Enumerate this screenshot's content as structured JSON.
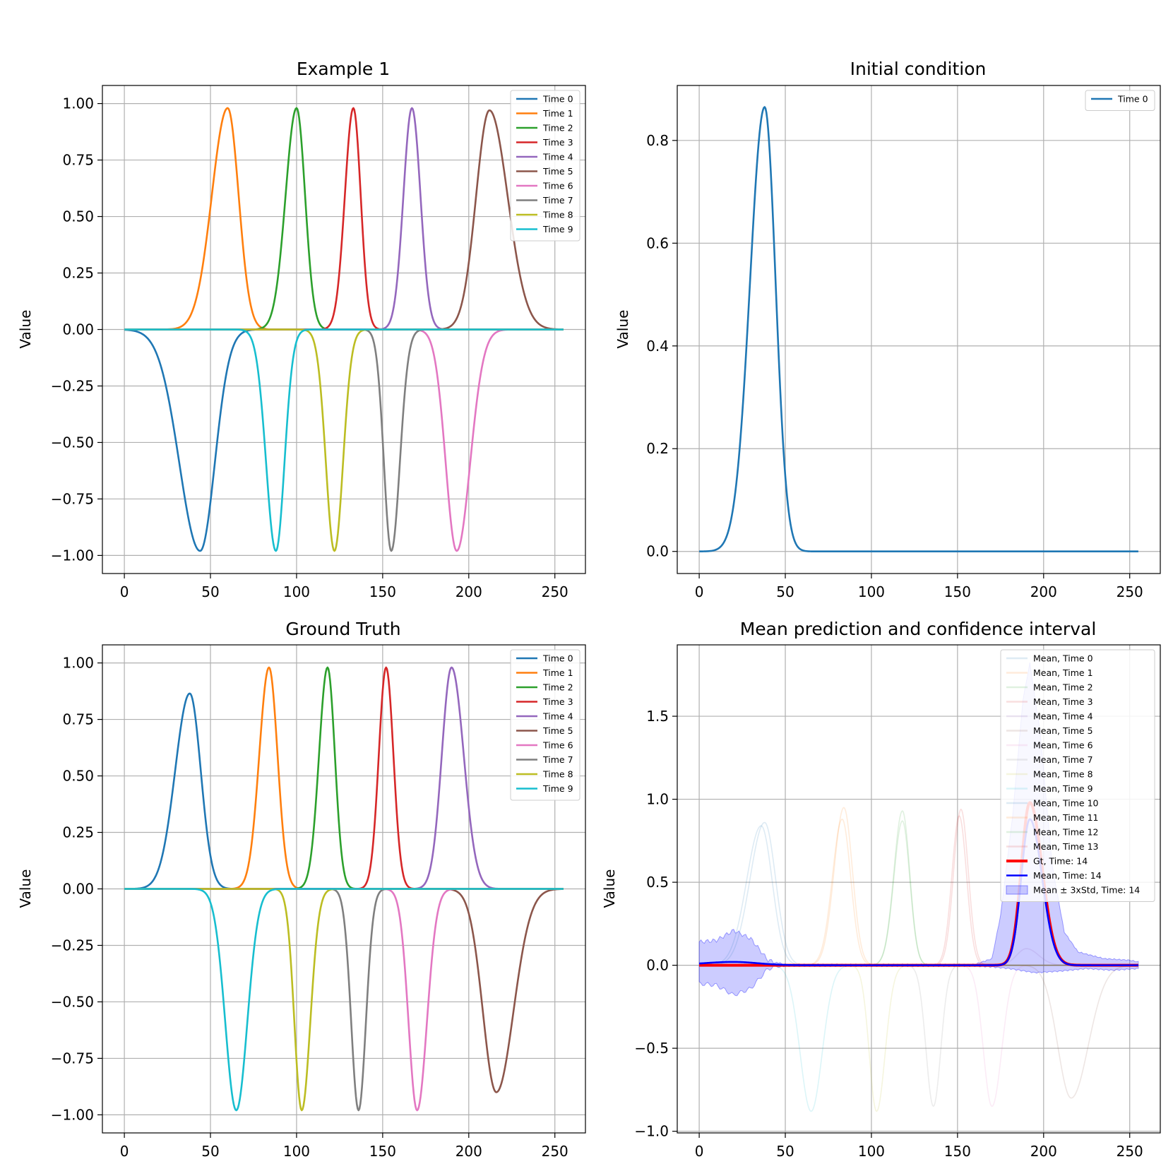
{
  "chart_data": [
    {
      "id": "example1",
      "type": "line",
      "title": "Example 1",
      "xlabel": "",
      "ylabel": "Value",
      "xlim": [
        -12.75,
        267.75
      ],
      "ylim": [
        -1.08,
        1.08
      ],
      "xticks": [
        0,
        50,
        100,
        150,
        200,
        250
      ],
      "xtick_labels": [
        "0",
        "50",
        "100",
        "150",
        "200",
        "250"
      ],
      "yticks": [
        1.0,
        0.75,
        0.5,
        0.25,
        0.0,
        -0.25,
        -0.5,
        -0.75,
        -1.0
      ],
      "ytick_labels": [
        "1.00",
        "0.75",
        "0.50",
        "0.25",
        "0.00",
        "−0.25",
        "−0.50",
        "−0.75",
        "−1.00"
      ],
      "grid": true,
      "legend_position": "top-right",
      "series": [
        {
          "name": "Time 0",
          "color": "#1f77b4",
          "peaks": [
            {
              "center": 44,
              "amplitude": -0.98,
              "width_left": 17,
              "width_right": 12
            }
          ]
        },
        {
          "name": "Time 1",
          "color": "#ff7f0e",
          "peaks": [
            {
              "center": 60,
              "amplitude": 0.98,
              "width_left": 13,
              "width_right": 9
            }
          ]
        },
        {
          "name": "Time 2",
          "color": "#2ca02c",
          "peaks": [
            {
              "center": 100,
              "amplitude": 0.98,
              "width_left": 9,
              "width_right": 7
            }
          ]
        },
        {
          "name": "Time 3",
          "color": "#d62728",
          "peaks": [
            {
              "center": 133,
              "amplitude": 0.98,
              "width_left": 7,
              "width_right": 6
            }
          ]
        },
        {
          "name": "Time 4",
          "color": "#9467bd",
          "peaks": [
            {
              "center": 167,
              "amplitude": 0.98,
              "width_left": 7,
              "width_right": 7
            }
          ]
        },
        {
          "name": "Time 5",
          "color": "#8c564b",
          "peaks": [
            {
              "center": 212,
              "amplitude": 0.97,
              "width_left": 11,
              "width_right": 15
            }
          ]
        },
        {
          "name": "Time 6",
          "color": "#e377c2",
          "peaks": [
            {
              "center": 193,
              "amplitude": -0.98,
              "width_left": 9,
              "width_right": 11
            }
          ]
        },
        {
          "name": "Time 7",
          "color": "#7f7f7f",
          "peaks": [
            {
              "center": 155,
              "amplitude": -0.98,
              "width_left": 6,
              "width_right": 7
            }
          ]
        },
        {
          "name": "Time 8",
          "color": "#bcbd22",
          "peaks": [
            {
              "center": 122,
              "amplitude": -0.98,
              "width_left": 7,
              "width_right": 7
            }
          ]
        },
        {
          "name": "Time 9",
          "color": "#17becf",
          "peaks": [
            {
              "center": 88,
              "amplitude": -0.98,
              "width_left": 8,
              "width_right": 7
            }
          ]
        }
      ]
    },
    {
      "id": "initial-condition",
      "type": "line",
      "title": "Initial condition",
      "xlabel": "",
      "ylabel": "Value",
      "xlim": [
        -12.75,
        267.75
      ],
      "ylim": [
        -0.043,
        0.907
      ],
      "xticks": [
        0,
        50,
        100,
        150,
        200,
        250
      ],
      "xtick_labels": [
        "0",
        "50",
        "100",
        "150",
        "200",
        "250"
      ],
      "yticks": [
        0.8,
        0.6,
        0.4,
        0.2,
        0.0
      ],
      "ytick_labels": [
        "0.8",
        "0.6",
        "0.4",
        "0.2",
        "0.0"
      ],
      "grid": true,
      "legend_position": "top-right",
      "series": [
        {
          "name": "Time 0",
          "color": "#1f77b4",
          "peaks": [
            {
              "center": 38,
              "amplitude": 0.865,
              "width_left": 12,
              "width_right": 9
            }
          ]
        }
      ]
    },
    {
      "id": "ground-truth",
      "type": "line",
      "title": "Ground Truth",
      "xlabel": "",
      "ylabel": "Value",
      "xlim": [
        -12.75,
        267.75
      ],
      "ylim": [
        -1.08,
        1.08
      ],
      "xticks": [
        0,
        50,
        100,
        150,
        200,
        250
      ],
      "xtick_labels": [
        "0",
        "50",
        "100",
        "150",
        "200",
        "250"
      ],
      "yticks": [
        1.0,
        0.75,
        0.5,
        0.25,
        0.0,
        -0.25,
        -0.5,
        -0.75,
        -1.0
      ],
      "ytick_labels": [
        "1.00",
        "0.75",
        "0.50",
        "0.25",
        "0.00",
        "−0.25",
        "−0.50",
        "−0.75",
        "−1.00"
      ],
      "grid": true,
      "legend_position": "top-right",
      "series": [
        {
          "name": "Time 0",
          "color": "#1f77b4",
          "peaks": [
            {
              "center": 38,
              "amplitude": 0.865,
              "width_left": 12,
              "width_right": 9
            }
          ]
        },
        {
          "name": "Time 1",
          "color": "#ff7f0e",
          "peaks": [
            {
              "center": 84,
              "amplitude": 0.98,
              "width_left": 8,
              "width_right": 7
            }
          ]
        },
        {
          "name": "Time 2",
          "color": "#2ca02c",
          "peaks": [
            {
              "center": 118,
              "amplitude": 0.98,
              "width_left": 7,
              "width_right": 6
            }
          ]
        },
        {
          "name": "Time 3",
          "color": "#d62728",
          "peaks": [
            {
              "center": 152,
              "amplitude": 0.98,
              "width_left": 6,
              "width_right": 6
            }
          ]
        },
        {
          "name": "Time 4",
          "color": "#9467bd",
          "peaks": [
            {
              "center": 190,
              "amplitude": 0.98,
              "width_left": 8,
              "width_right": 10
            }
          ]
        },
        {
          "name": "Time 5",
          "color": "#8c564b",
          "peaks": [
            {
              "center": 216,
              "amplitude": -0.9,
              "width_left": 11,
              "width_right": 14
            }
          ]
        },
        {
          "name": "Time 6",
          "color": "#e377c2",
          "peaks": [
            {
              "center": 170,
              "amplitude": -0.98,
              "width_left": 7,
              "width_right": 8
            }
          ]
        },
        {
          "name": "Time 7",
          "color": "#7f7f7f",
          "peaks": [
            {
              "center": 136,
              "amplitude": -0.98,
              "width_left": 6,
              "width_right": 6
            }
          ]
        },
        {
          "name": "Time 8",
          "color": "#bcbd22",
          "peaks": [
            {
              "center": 103,
              "amplitude": -0.98,
              "width_left": 6,
              "width_right": 7
            }
          ]
        },
        {
          "name": "Time 9",
          "color": "#17becf",
          "peaks": [
            {
              "center": 65,
              "amplitude": -0.98,
              "width_left": 9,
              "width_right": 9
            }
          ]
        }
      ]
    },
    {
      "id": "mean-prediction",
      "type": "line",
      "title": "Mean prediction and confidence interval",
      "xlabel": "",
      "ylabel": "Value",
      "xlim": [
        -12.75,
        267.75
      ],
      "ylim": [
        -1.01,
        1.93
      ],
      "xticks": [
        0,
        50,
        100,
        150,
        200,
        250
      ],
      "xtick_labels": [
        "0",
        "50",
        "100",
        "150",
        "200",
        "250"
      ],
      "yticks": [
        1.5,
        1.0,
        0.5,
        0.0,
        -0.5,
        -1.0
      ],
      "ytick_labels": [
        "1.5",
        "1.0",
        "0.5",
        "0.0",
        "−0.5",
        "−1.0"
      ],
      "grid": true,
      "legend_position": "top-right",
      "faint_series_opacity": 0.15,
      "series": [
        {
          "name": "Mean, Time 0",
          "color": "#1f77b4",
          "faint": true,
          "peaks": [
            {
              "center": 38,
              "amplitude": 0.86,
              "width_left": 12,
              "width_right": 9
            }
          ]
        },
        {
          "name": "Mean, Time 1",
          "color": "#ff7f0e",
          "faint": true,
          "peaks": [
            {
              "center": 84,
              "amplitude": 0.95,
              "width_left": 8,
              "width_right": 7
            }
          ]
        },
        {
          "name": "Mean, Time 2",
          "color": "#2ca02c",
          "faint": true,
          "peaks": [
            {
              "center": 118,
              "amplitude": 0.93,
              "width_left": 7,
              "width_right": 6
            }
          ]
        },
        {
          "name": "Mean, Time 3",
          "color": "#d62728",
          "faint": true,
          "peaks": [
            {
              "center": 152,
              "amplitude": 0.94,
              "width_left": 6,
              "width_right": 6
            }
          ]
        },
        {
          "name": "Mean, Time 4",
          "color": "#9467bd",
          "faint": true,
          "peaks": [
            {
              "center": 190,
              "amplitude": 0.1,
              "width_left": 8,
              "width_right": 10
            }
          ]
        },
        {
          "name": "Mean, Time 5",
          "color": "#8c564b",
          "faint": true,
          "peaks": [
            {
              "center": 216,
              "amplitude": -0.8,
              "width_left": 11,
              "width_right": 14
            }
          ]
        },
        {
          "name": "Mean, Time 6",
          "color": "#e377c2",
          "faint": true,
          "peaks": [
            {
              "center": 170,
              "amplitude": -0.85,
              "width_left": 7,
              "width_right": 8
            }
          ]
        },
        {
          "name": "Mean, Time 7",
          "color": "#7f7f7f",
          "faint": true,
          "peaks": [
            {
              "center": 136,
              "amplitude": -0.85,
              "width_left": 6,
              "width_right": 6
            }
          ]
        },
        {
          "name": "Mean, Time 8",
          "color": "#bcbd22",
          "faint": true,
          "peaks": [
            {
              "center": 103,
              "amplitude": -0.88,
              "width_left": 6,
              "width_right": 7
            }
          ]
        },
        {
          "name": "Mean, Time 9",
          "color": "#17becf",
          "faint": true,
          "peaks": [
            {
              "center": 65,
              "amplitude": -0.88,
              "width_left": 9,
              "width_right": 9
            }
          ]
        },
        {
          "name": "Mean, Time 10",
          "color": "#1f77b4",
          "faint": true,
          "peaks": [
            {
              "center": 36,
              "amplitude": 0.84,
              "width_left": 12,
              "width_right": 9
            }
          ]
        },
        {
          "name": "Mean, Time 11",
          "color": "#ff7f0e",
          "faint": true,
          "peaks": [
            {
              "center": 83,
              "amplitude": 0.88,
              "width_left": 8,
              "width_right": 7
            }
          ]
        },
        {
          "name": "Mean, Time 12",
          "color": "#2ca02c",
          "faint": true,
          "peaks": [
            {
              "center": 118,
              "amplitude": 0.87,
              "width_left": 7,
              "width_right": 6
            }
          ]
        },
        {
          "name": "Mean, Time 13",
          "color": "#d62728",
          "faint": true,
          "peaks": [
            {
              "center": 151,
              "amplitude": 0.9,
              "width_left": 6,
              "width_right": 6
            }
          ]
        },
        {
          "name": "Gt, Time: 14",
          "color": "#ff0000",
          "emphasis": "thick",
          "peaks": [
            {
              "center": 192,
              "amplitude": 0.98,
              "width_left": 7,
              "width_right": 10
            }
          ]
        },
        {
          "name": "Mean, Time: 14",
          "color": "#0000ff",
          "emphasis": "normal",
          "peaks": [
            {
              "center": 192,
              "amplitude": 0.88,
              "width_left": 7,
              "width_right": 10
            },
            {
              "center": 20,
              "amplitude": 0.02,
              "width_left": 25,
              "width_right": 20
            }
          ]
        }
      ],
      "confidence_band": {
        "name": "Mean ± 3xStd, Time: 14",
        "color": "#0000ff",
        "opacity": 0.2,
        "upper_anchors": [
          [
            0,
            0.14
          ],
          [
            10,
            0.15
          ],
          [
            20,
            0.21
          ],
          [
            30,
            0.16
          ],
          [
            40,
            0.03
          ],
          [
            50,
            0.005
          ],
          [
            160,
            0.005
          ],
          [
            170,
            0.04
          ],
          [
            175,
            0.3
          ],
          [
            182,
            0.9
          ],
          [
            188,
            1.6
          ],
          [
            192,
            1.82
          ],
          [
            198,
            1.4
          ],
          [
            205,
            0.6
          ],
          [
            212,
            0.2
          ],
          [
            220,
            0.08
          ],
          [
            235,
            0.04
          ],
          [
            250,
            0.03
          ],
          [
            255,
            0.02
          ]
        ],
        "lower_anchors": [
          [
            0,
            -0.11
          ],
          [
            10,
            -0.12
          ],
          [
            20,
            -0.18
          ],
          [
            30,
            -0.14
          ],
          [
            40,
            -0.02
          ],
          [
            50,
            -0.005
          ],
          [
            160,
            -0.005
          ],
          [
            170,
            -0.01
          ],
          [
            180,
            -0.02
          ],
          [
            195,
            -0.045
          ],
          [
            210,
            -0.035
          ],
          [
            225,
            -0.02
          ],
          [
            240,
            -0.03
          ],
          [
            255,
            -0.02
          ]
        ]
      }
    }
  ]
}
